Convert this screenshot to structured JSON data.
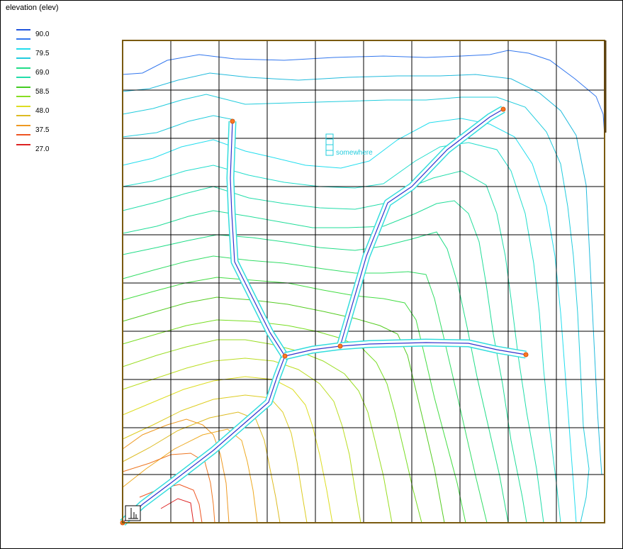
{
  "legend": {
    "title": "elevation (elev)",
    "entries": [
      {
        "label": "90.0",
        "color": "#2255dd"
      },
      {
        "label": "79.5",
        "color": "#22ddee"
      },
      {
        "label": "69.0",
        "color": "#22dd88"
      },
      {
        "label": "58.5",
        "color": "#44cc22"
      },
      {
        "label": "48.0",
        "color": "#dddd22"
      },
      {
        "label": "37.5",
        "color": "#ee9922"
      },
      {
        "label": "27.0",
        "color": "#dd2222"
      }
    ],
    "extra_colors": [
      "#3377ee",
      "#22ccdd",
      "#22ddaa",
      "#88dd22",
      "#ddbb22",
      "#ee5522"
    ]
  },
  "map": {
    "annotation": "somewhere",
    "outlet_icon": "gauge-icon",
    "colors": {
      "border": "#7a5a10",
      "grid": "#000000",
      "channel": "#3333cc",
      "channel_buffer": "#33dddd",
      "node": "#ff7722"
    }
  }
}
